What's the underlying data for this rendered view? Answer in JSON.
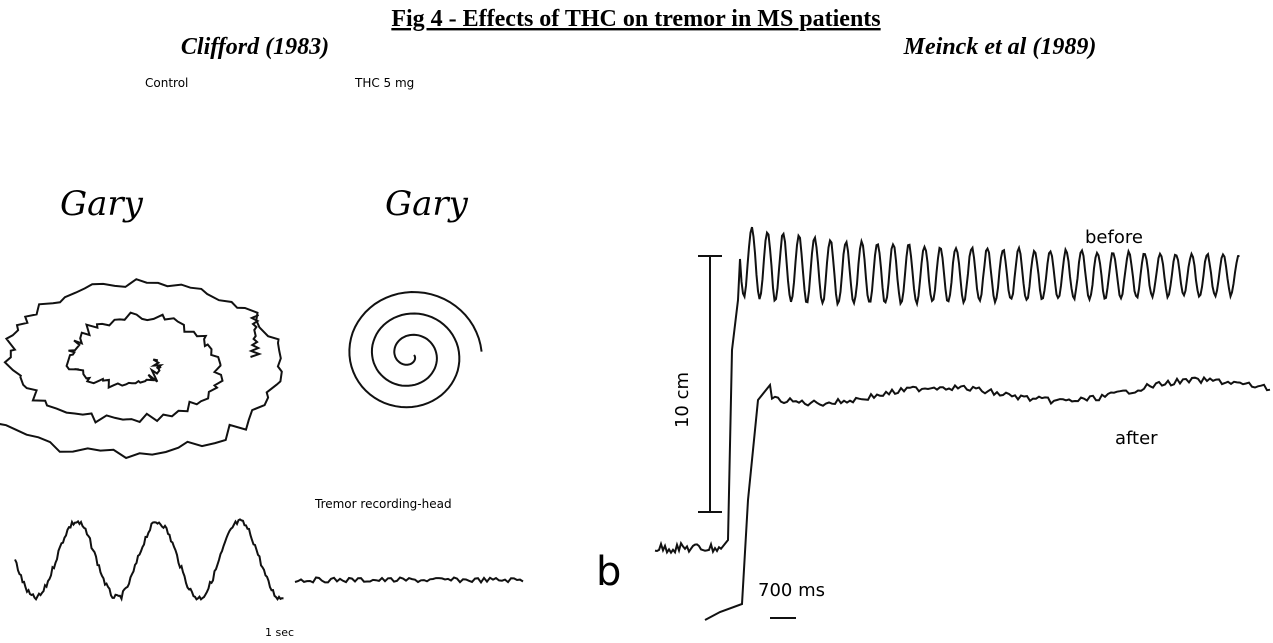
{
  "title": "Fig 4 - Effects of THC on tremor in MS patients",
  "left": {
    "subtitle": "Clifford (1983)",
    "control_label": "Control",
    "thc_label": "THC 5 mg",
    "control_signature": "Gary",
    "thc_signature": "Gary",
    "recording_label": "Tremor recording-head",
    "time_scale": "1 sec"
  },
  "right": {
    "subtitle": "Meinck et al (1989)",
    "panel_letter": "b",
    "before_label": "before",
    "after_label": "after",
    "amplitude_scale": "10 cm",
    "time_scale": "700 ms"
  }
}
